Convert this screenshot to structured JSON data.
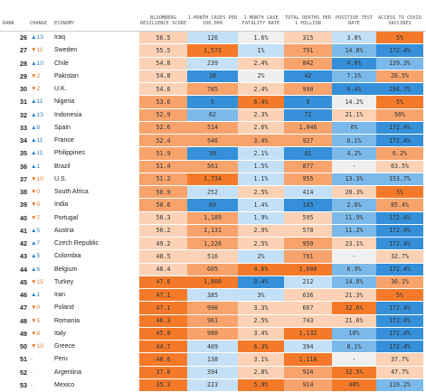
{
  "headers": {
    "rank": "RANK",
    "change": "CHANGE",
    "economy": "ECONOMY",
    "score": "BLOOMBERG RESILIENCE SCORE",
    "cases": "1-MONTH CASES PER 100,000",
    "fatality": "1-MONTH CASE FATALITY RATE",
    "deaths": "TOTAL DEATHS PER 1 MILLION",
    "positive": "POSITIVE TEST RATE",
    "vaccines": "ACCESS TO COVID VACCINES"
  },
  "colors": {
    "dark_orange": "#f47a2a",
    "mid_orange": "#f8a36c",
    "light_orange": "#fbd2b5",
    "dark_blue": "#3590d9",
    "mid_blue": "#7ab9ea",
    "light_blue": "#c4e0f6",
    "neutral": "#efefef",
    "up_arrow": "#2d7fc7",
    "down_arrow": "#e8742a"
  },
  "rows": [
    {
      "rank": "26",
      "change": "▲13",
      "dir": "up",
      "economy": "Iraq",
      "score": "56.5",
      "cases": "126",
      "fatality": "1.6%",
      "deaths": "315",
      "positive": "3.8%",
      "vaccines": "5%"
    },
    {
      "rank": "27",
      "change": "▼11",
      "dir": "down",
      "economy": "Sweden",
      "score": "55.5",
      "cases": "1,573",
      "fatality": "1%",
      "deaths": "791",
      "positive": "14.8%",
      "vaccines": "172.4%"
    },
    {
      "rank": "28",
      "change": "▲10",
      "dir": "up",
      "economy": "Chile",
      "score": "54.8",
      "cases": "239",
      "fatality": "2.4%",
      "deaths": "842",
      "positive": "4.8%",
      "vaccines": "139.3%"
    },
    {
      "rank": "29",
      "change": "▼2",
      "dir": "down",
      "economy": "Pakistan",
      "score": "54.8",
      "cases": "38",
      "fatality": "2%",
      "deaths": "42",
      "positive": "7.1%",
      "vaccines": "26.5%"
    },
    {
      "rank": "30",
      "change": "▼2",
      "dir": "down",
      "economy": "U.K.",
      "score": "54.6",
      "cases": "785",
      "fatality": "2.4%",
      "deaths": "990",
      "positive": "6.4%",
      "vaccines": "294.7%"
    },
    {
      "rank": "31",
      "change": "▲11",
      "dir": "up",
      "economy": "Nigeria",
      "score": "53.6",
      "cases": "6",
      "fatality": "6.4%",
      "deaths": "6",
      "positive": "14.2%",
      "vaccines": "5%"
    },
    {
      "rank": "32",
      "change": "▲13",
      "dir": "up",
      "economy": "Indonesia",
      "score": "52.9",
      "cases": "62",
      "fatality": "2.3%",
      "deaths": "72",
      "positive": "21.1%",
      "vaccines": "50%"
    },
    {
      "rank": "33",
      "change": "▲8",
      "dir": "up",
      "economy": "Spain",
      "score": "52.6",
      "cases": "514",
      "fatality": "2.6%",
      "deaths": "1,046",
      "positive": "6%",
      "vaccines": "172.4%"
    },
    {
      "rank": "34",
      "change": "▲11",
      "dir": "up",
      "economy": "France",
      "score": "52.4",
      "cases": "546",
      "fatality": "3.4%",
      "deaths": "927",
      "positive": "6.1%",
      "vaccines": "172.4%"
    },
    {
      "rank": "35",
      "change": "▲11",
      "dir": "up",
      "economy": "Philippines",
      "score": "51.9",
      "cases": "39",
      "fatality": "2.1%",
      "deaths": "81",
      "positive": "4.2%",
      "vaccines": "6.2%"
    },
    {
      "rank": "36",
      "change": "▲1",
      "dir": "up",
      "economy": "Brazil",
      "score": "51.4",
      "cases": "561",
      "fatality": "1.5%",
      "deaths": "877",
      "positive": "-",
      "vaccines": "63.5%"
    },
    {
      "rank": "37",
      "change": "▼10",
      "dir": "down",
      "economy": "U.S.",
      "score": "51.2",
      "cases": "1,734",
      "fatality": "1.1%",
      "deaths": "955",
      "positive": "13.3%",
      "vaccines": "153.7%"
    },
    {
      "rank": "38",
      "change": "▼0",
      "dir": "down",
      "economy": "South Africa",
      "score": "50.9",
      "cases": "252",
      "fatality": "2.5%",
      "deaths": "414",
      "positive": "20.3%",
      "vaccines": "5%"
    },
    {
      "rank": "39",
      "change": "▼5",
      "dir": "down",
      "economy": "India",
      "score": "50.6",
      "cases": "69",
      "fatality": "1.4%",
      "deaths": "105",
      "positive": "2.6%",
      "vaccines": "85.4%"
    },
    {
      "rank": "40",
      "change": "▼7",
      "dir": "down",
      "economy": "Portugal",
      "score": "50.3",
      "cases": "1,189",
      "fatality": "1.9%",
      "deaths": "595",
      "positive": "11.9%",
      "vaccines": "172.4%"
    },
    {
      "rank": "41",
      "change": "▲5",
      "dir": "up",
      "economy": "Austria",
      "score": "50.2",
      "cases": "1,131",
      "fatality": "2.9%",
      "deaths": "578",
      "positive": "11.2%",
      "vaccines": "172.4%"
    },
    {
      "rank": "42",
      "change": "▲7",
      "dir": "up",
      "economy": "Czech Republic",
      "score": "49.2",
      "cases": "1,226",
      "fatality": "2.5%",
      "deaths": "959",
      "positive": "23.1%",
      "vaccines": "172.4%"
    },
    {
      "rank": "43",
      "change": "▲5",
      "dir": "up",
      "economy": "Colombia",
      "score": "48.5",
      "cases": "516",
      "fatality": "2%",
      "deaths": "791",
      "positive": "-",
      "vaccines": "32.7%"
    },
    {
      "rank": "44",
      "change": "▲6",
      "dir": "up",
      "economy": "Belgium",
      "score": "48.4",
      "cases": "605",
      "fatality": "4.6%",
      "deaths": "1,600",
      "positive": "6.9%",
      "vaccines": "172.4%"
    },
    {
      "rank": "45",
      "change": "▼15",
      "dir": "down",
      "economy": "Turkey",
      "score": "47.6",
      "cases": "1,860",
      "fatality": "0.4%",
      "deaths": "212",
      "positive": "14.8%",
      "vaccines": "30.1%"
    },
    {
      "rank": "46",
      "change": "▲1",
      "dir": "up",
      "economy": "Iran",
      "score": "47.1",
      "cases": "385",
      "fatality": "3%",
      "deaths": "636",
      "positive": "21.3%",
      "vaccines": "5%"
    },
    {
      "rank": "47",
      "change": "▼0",
      "dir": "down",
      "economy": "Poland",
      "score": "47.1",
      "cases": "990",
      "fatality": "3.3%",
      "deaths": "667",
      "positive": "32.6%",
      "vaccines": "172.4%"
    },
    {
      "rank": "48",
      "change": "▼5",
      "dir": "down",
      "economy": "Romania",
      "score": "46.3",
      "cases": "961",
      "fatality": "2.5%",
      "deaths": "743",
      "positive": "21.6%",
      "vaccines": "172.4%"
    },
    {
      "rank": "49",
      "change": "▼8",
      "dir": "down",
      "economy": "Italy",
      "score": "45.8",
      "cases": "980",
      "fatality": "3.4%",
      "deaths": "1,132",
      "positive": "10%",
      "vaccines": "172.4%"
    },
    {
      "rank": "50",
      "change": "▼10",
      "dir": "down",
      "economy": "Greece",
      "score": "44.7",
      "cases": "409",
      "fatality": "6.3%",
      "deaths": "394",
      "positive": "8.1%",
      "vaccines": "172.4%"
    },
    {
      "rank": "51",
      "change": "-",
      "dir": "flat",
      "economy": "Peru",
      "score": "40.6",
      "cases": "138",
      "fatality": "3.1%",
      "deaths": "1,118",
      "positive": "-",
      "vaccines": "37.7%"
    },
    {
      "rank": "52",
      "change": "-",
      "dir": "flat",
      "economy": "Argentina",
      "score": "37.8",
      "cases": "394",
      "fatality": "2.8%",
      "deaths": "924",
      "positive": "32.5%",
      "vaccines": "47.7%"
    },
    {
      "rank": "53",
      "change": "-",
      "dir": "flat",
      "economy": "Mexico",
      "score": "35.3",
      "cases": "223",
      "fatality": "5.9%",
      "deaths": "914",
      "positive": "40%",
      "vaccines": "119.2%"
    }
  ],
  "cell_tones": [
    [
      "ld",
      "lb",
      "n",
      "lo",
      "lb",
      "do"
    ],
    [
      "ld",
      "do",
      "lb",
      "mo",
      "mb",
      "db"
    ],
    [
      "ld",
      "lb",
      "lo",
      "mo",
      "db",
      "mb"
    ],
    [
      "ld",
      "db",
      "n",
      "db",
      "mb",
      "mo"
    ],
    [
      "ld",
      "mo",
      "lo",
      "mo",
      "db",
      "db"
    ],
    [
      "mo",
      "db",
      "do",
      "db",
      "n",
      "do"
    ],
    [
      "mo",
      "mb",
      "lo",
      "db",
      "lo",
      "mo"
    ],
    [
      "mo",
      "mo",
      "lo",
      "mo",
      "mb",
      "db"
    ],
    [
      "mo",
      "mo",
      "mo",
      "mo",
      "mb",
      "db"
    ],
    [
      "mo",
      "db",
      "lb",
      "db",
      "mb",
      "mo"
    ],
    [
      "mo",
      "mo",
      "lb",
      "mo",
      "n",
      "lo"
    ],
    [
      "mo",
      "do",
      "lb",
      "mo",
      "mb",
      "mb"
    ],
    [
      "mo",
      "lb",
      "lo",
      "lb",
      "lo",
      "do"
    ],
    [
      "mo",
      "db",
      "lb",
      "db",
      "mb",
      "mo"
    ],
    [
      "lo",
      "mo",
      "lb",
      "lo",
      "mb",
      "db"
    ],
    [
      "lo",
      "mo",
      "lo",
      "lo",
      "mb",
      "db"
    ],
    [
      "lo",
      "mo",
      "lo",
      "mo",
      "lo",
      "db"
    ],
    [
      "lo",
      "lo",
      "lb",
      "mo",
      "n",
      "lo"
    ],
    [
      "lo",
      "mo",
      "do",
      "do",
      "mb",
      "db"
    ],
    [
      "do",
      "do",
      "db",
      "lb",
      "mb",
      "mo"
    ],
    [
      "do",
      "lb",
      "lb",
      "lo",
      "lo",
      "do"
    ],
    [
      "do",
      "mo",
      "lo",
      "lo",
      "do",
      "db"
    ],
    [
      "do",
      "mo",
      "lo",
      "lo",
      "lo",
      "db"
    ],
    [
      "do",
      "mo",
      "lo",
      "do",
      "mb",
      "db"
    ],
    [
      "do",
      "lb",
      "do",
      "lb",
      "mb",
      "db"
    ],
    [
      "do",
      "lb",
      "lo",
      "do",
      "n",
      "lo"
    ],
    [
      "do",
      "lb",
      "lo",
      "mo",
      "do",
      "lo"
    ],
    [
      "do",
      "lb",
      "do",
      "mo",
      "do",
      "mb"
    ]
  ]
}
